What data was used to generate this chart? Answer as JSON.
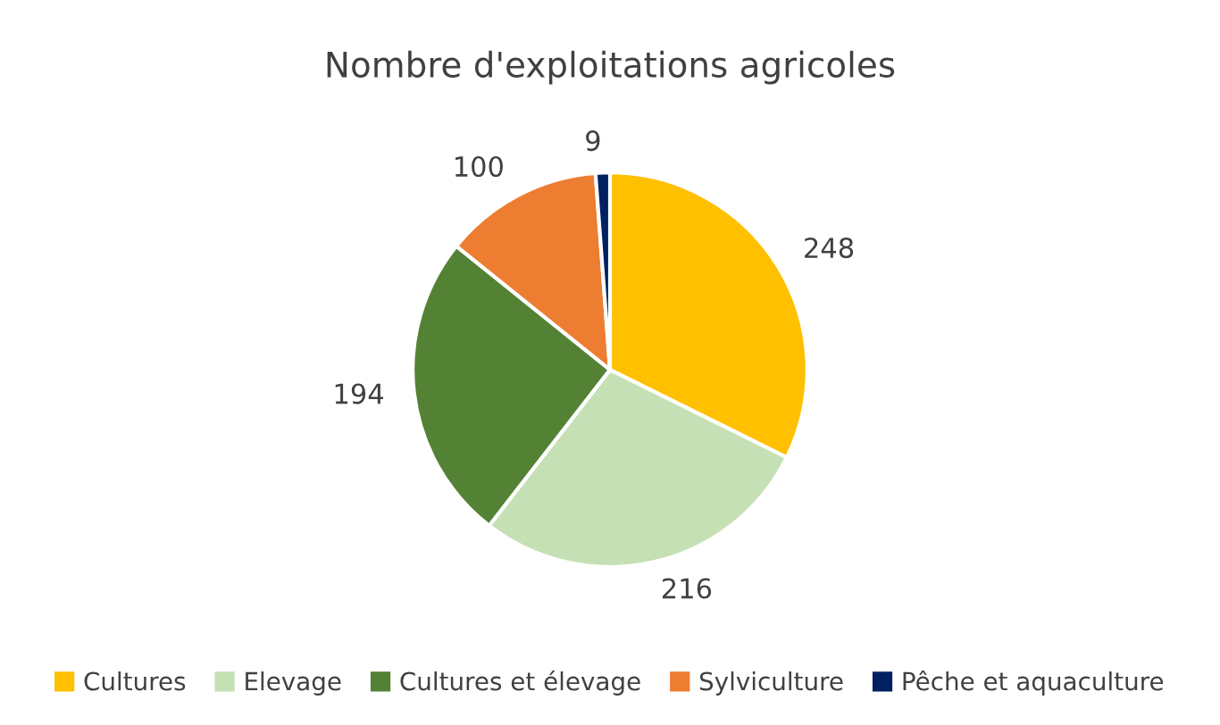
{
  "chart_data": {
    "type": "pie",
    "title": "Nombre d'exploitations agricoles",
    "categories": [
      "Cultures",
      "Elevage",
      "Cultures et élevage",
      "Sylviculture",
      "Pêche et aquaculture"
    ],
    "values": [
      248,
      216,
      194,
      100,
      9
    ],
    "colors": [
      "#ffc000",
      "#c5e0b4",
      "#548235",
      "#ed7d31",
      "#002060"
    ],
    "data_labels": true,
    "legend": "bottom"
  }
}
